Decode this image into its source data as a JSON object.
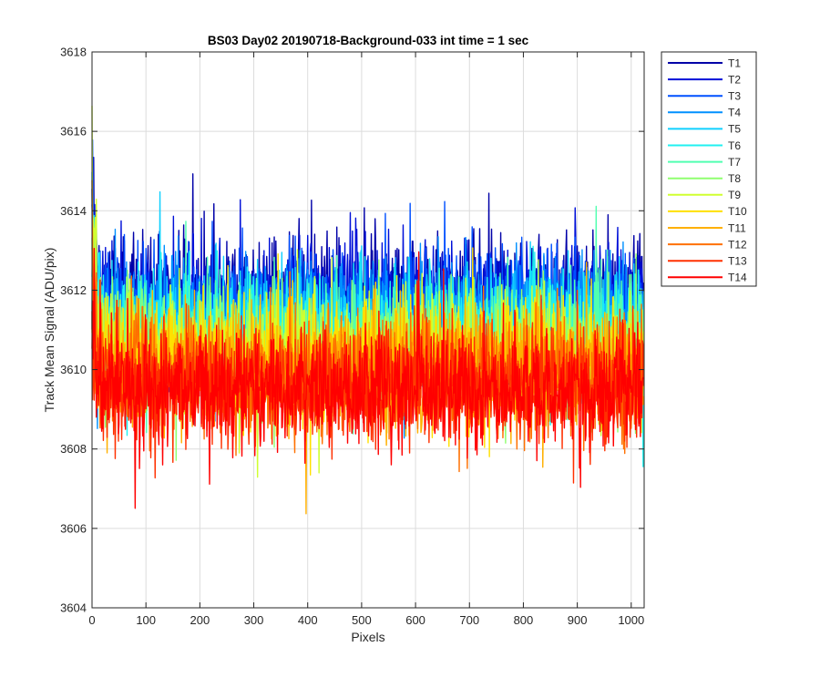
{
  "chart_data": {
    "type": "line",
    "title": "BS03 Day02 20190718-Background-033 int time = 1 sec",
    "xlabel": "Pixels",
    "ylabel": "Track Mean Signal (ADU/pix)",
    "xlim": [
      0,
      1024
    ],
    "ylim": [
      3604,
      3618
    ],
    "xticks": [
      0,
      100,
      200,
      300,
      400,
      500,
      600,
      700,
      800,
      900,
      1000
    ],
    "yticks": [
      3604,
      3606,
      3608,
      3610,
      3612,
      3614,
      3616,
      3618
    ],
    "grid": true,
    "legend_position": "outside-top-right",
    "n_points": 1024,
    "series": [
      {
        "name": "T1",
        "color": "#0000a8",
        "mean": 3611.9,
        "spread": 0.75,
        "start": 3614.2
      },
      {
        "name": "T2",
        "color": "#0010d8",
        "mean": 3611.7,
        "spread": 0.75,
        "start": 3614.0
      },
      {
        "name": "T3",
        "color": "#0050ff",
        "mean": 3611.5,
        "spread": 0.75,
        "start": 3613.6
      },
      {
        "name": "T4",
        "color": "#0090ff",
        "mean": 3611.3,
        "spread": 0.75,
        "start": 3613.4
      },
      {
        "name": "T5",
        "color": "#10d0ff",
        "mean": 3611.1,
        "spread": 0.75,
        "start": 3613.0
      },
      {
        "name": "T6",
        "color": "#20f0f0",
        "mean": 3610.9,
        "spread": 0.75,
        "start": 3612.8
      },
      {
        "name": "T7",
        "color": "#50ffb0",
        "mean": 3610.7,
        "spread": 0.75,
        "start": 3612.6
      },
      {
        "name": "T8",
        "color": "#90ff70",
        "mean": 3610.5,
        "spread": 0.75,
        "start": 3612.4
      },
      {
        "name": "T9",
        "color": "#d0ff30",
        "mean": 3610.4,
        "spread": 0.75,
        "start": 3615.8
      },
      {
        "name": "T10",
        "color": "#ffe000",
        "mean": 3610.2,
        "spread": 0.75,
        "start": 3612.0
      },
      {
        "name": "T11",
        "color": "#ffb000",
        "mean": 3610.0,
        "spread": 0.75,
        "start": 3611.8
      },
      {
        "name": "T12",
        "color": "#ff7000",
        "mean": 3609.8,
        "spread": 0.75,
        "start": 3613.8
      },
      {
        "name": "T13",
        "color": "#ff3000",
        "mean": 3609.6,
        "spread": 0.75,
        "start": 3611.6
      },
      {
        "name": "T14",
        "color": "#ff0000",
        "mean": 3609.5,
        "spread": 0.75,
        "start": 3611.2
      }
    ]
  }
}
